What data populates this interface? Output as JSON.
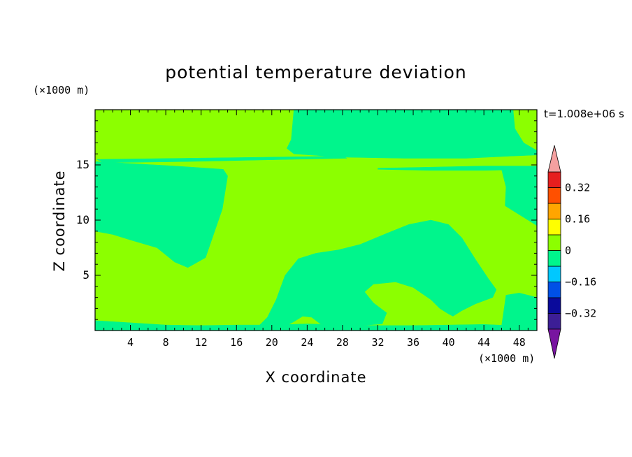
{
  "chart_data": {
    "type": "heatmap",
    "title": "potential temperature deviation",
    "xlabel": "X coordinate",
    "ylabel": "Z coordinate",
    "x_unit": "(×1000 m)",
    "y_unit": "(×1000 m)",
    "time_label": "t=1.008e+06 s",
    "xlim": [
      0,
      50
    ],
    "ylim": [
      0,
      20
    ],
    "x_ticks": [
      4,
      8,
      12,
      16,
      20,
      24,
      28,
      32,
      36,
      40,
      44,
      48
    ],
    "y_ticks": [
      5,
      10,
      15
    ],
    "x_tick_labels": [
      "4",
      "8",
      "12",
      "16",
      "20",
      "24",
      "28",
      "32",
      "36",
      "40",
      "44",
      "48"
    ],
    "y_tick_labels": [
      "5",
      "10",
      "15"
    ],
    "colorbar": {
      "levels": [
        -0.4,
        -0.32,
        -0.24,
        -0.16,
        -0.08,
        0,
        0.08,
        0.16,
        0.24,
        0.32,
        0.4
      ],
      "tick_values": [
        -0.32,
        -0.16,
        0,
        0.16,
        0.32
      ],
      "tick_labels": [
        "−0.32",
        "−0.16",
        "0",
        "0.16",
        "0.32"
      ],
      "colors": [
        "#3c1e96",
        "#0a0a9b",
        "#0050e6",
        "#00c8ff",
        "#00f58c",
        "#8cff00",
        "#ffff00",
        "#ffa500",
        "#ff5000",
        "#e61e1e"
      ],
      "under_color": "#7814a0",
      "over_color": "#f5a0a0"
    },
    "regions": [
      {
        "band": [
          -0.08,
          0
        ],
        "color": "#00f58c",
        "points": [
          [
            0.1,
            15.3
          ],
          [
            9,
            14.9
          ],
          [
            14.5,
            14.6
          ],
          [
            15,
            14
          ],
          [
            14.4,
            11
          ],
          [
            12.5,
            6.6
          ],
          [
            10.5,
            5.7
          ],
          [
            9,
            6.2
          ],
          [
            7,
            7.5
          ],
          [
            4,
            8.2
          ],
          [
            2,
            8.7
          ],
          [
            0,
            9.0
          ],
          [
            0,
            14.8
          ]
        ]
      },
      {
        "band": [
          -0.08,
          0
        ],
        "color": "#00f58c",
        "points": [
          [
            22.5,
            20
          ],
          [
            22.2,
            17.3
          ],
          [
            21.7,
            16.5
          ],
          [
            22.5,
            16.0
          ],
          [
            28,
            15.7
          ],
          [
            35,
            15.6
          ],
          [
            42,
            15.6
          ],
          [
            47,
            15.8
          ],
          [
            50,
            15.9
          ],
          [
            50,
            16.3
          ],
          [
            48.5,
            17.0
          ],
          [
            47.5,
            18.3
          ],
          [
            47.3,
            20
          ]
        ]
      },
      {
        "band": [
          -0.08,
          0
        ],
        "color": "#00f58c",
        "points": [
          [
            0.2,
            15.5
          ],
          [
            10,
            15.6
          ],
          [
            20,
            15.7
          ],
          [
            28,
            15.8
          ],
          [
            28.5,
            15.6
          ],
          [
            22,
            15.5
          ],
          [
            10,
            15.3
          ],
          [
            1,
            15.2
          ]
        ]
      },
      {
        "band": [
          -0.08,
          0
        ],
        "color": "#00f58c",
        "points": [
          [
            32,
            14.7
          ],
          [
            38,
            14.8
          ],
          [
            44,
            14.9
          ],
          [
            50,
            14.9
          ],
          [
            50,
            14.6
          ],
          [
            44,
            14.5
          ],
          [
            38,
            14.5
          ],
          [
            32,
            14.6
          ]
        ]
      },
      {
        "band": [
          -0.08,
          0
        ],
        "color": "#00f58c",
        "points": [
          [
            46,
            14.6
          ],
          [
            46.5,
            13
          ],
          [
            46.4,
            11.3
          ],
          [
            48,
            10.5
          ],
          [
            50,
            9.5
          ],
          [
            50,
            14.6
          ]
        ]
      },
      {
        "band": [
          -0.08,
          0
        ],
        "color": "#00f58c",
        "points": [
          [
            18.5,
            0.4
          ],
          [
            19.5,
            1.2
          ],
          [
            20.5,
            2.8
          ],
          [
            21.5,
            5.0
          ],
          [
            23,
            6.5
          ],
          [
            25,
            7.0
          ],
          [
            27.5,
            7.3
          ],
          [
            30,
            7.8
          ],
          [
            33,
            8.8
          ],
          [
            35.5,
            9.6
          ],
          [
            38,
            10.0
          ],
          [
            40,
            9.6
          ],
          [
            41.5,
            8.4
          ],
          [
            43,
            6.5
          ],
          [
            44.5,
            4.7
          ],
          [
            45.4,
            3.7
          ],
          [
            45,
            3.0
          ],
          [
            43,
            2.4
          ],
          [
            41.5,
            1.8
          ],
          [
            40.5,
            1.3
          ],
          [
            40,
            1.5
          ],
          [
            39,
            2.0
          ],
          [
            38,
            2.8
          ],
          [
            36,
            3.9
          ],
          [
            34,
            4.4
          ],
          [
            31.5,
            4.2
          ],
          [
            30.5,
            3.5
          ],
          [
            31.5,
            2.5
          ],
          [
            33,
            1.6
          ],
          [
            32.5,
            0.6
          ],
          [
            30,
            0.45
          ],
          [
            27,
            0.45
          ],
          [
            25.5,
            0.6
          ],
          [
            24.5,
            1.2
          ],
          [
            23.5,
            1.3
          ],
          [
            22.5,
            0.8
          ],
          [
            21.5,
            0.4
          ]
        ]
      },
      {
        "band": [
          -0.08,
          0
        ],
        "color": "#00f58c",
        "points": [
          [
            46,
            0.4
          ],
          [
            46.2,
            1.5
          ],
          [
            46.5,
            3.2
          ],
          [
            48,
            3.4
          ],
          [
            50,
            3.0
          ],
          [
            50,
            0.4
          ]
        ]
      },
      {
        "band": [
          -0.08,
          0
        ],
        "color": "#00f58c",
        "points": [
          [
            0,
            0
          ],
          [
            50,
            0
          ],
          [
            50,
            0.4
          ],
          [
            47,
            0.45
          ],
          [
            44,
            0.55
          ],
          [
            40,
            0.5
          ],
          [
            36,
            0.45
          ],
          [
            32,
            0.45
          ],
          [
            28,
            0.5
          ],
          [
            24,
            0.6
          ],
          [
            20,
            0.5
          ],
          [
            16,
            0.5
          ],
          [
            12,
            0.45
          ],
          [
            8,
            0.5
          ],
          [
            4,
            0.7
          ],
          [
            0,
            0.9
          ]
        ]
      }
    ]
  }
}
